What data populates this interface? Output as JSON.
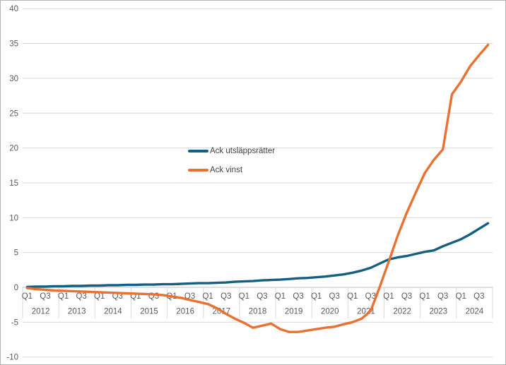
{
  "style": {
    "background": "#FFFFFF",
    "frame_border_color": "#B3B3B3",
    "gridline_color": "#D9D9D9",
    "axis_line_color": "#BFBFBF",
    "tick_label_color": "#595959",
    "legend_text_color": "#404040"
  },
  "chart_data": {
    "type": "line",
    "title": "",
    "xlabel": "",
    "ylabel": "",
    "ylim": [
      -10,
      40
    ],
    "ytick_step": 5,
    "yticks": [
      40,
      35,
      30,
      25,
      20,
      15,
      10,
      5,
      0,
      -5,
      -10
    ],
    "grid": true,
    "legend": {
      "position": "inside-center-left",
      "items": [
        "Ack utsläppsrätter",
        "Ack vinst"
      ]
    },
    "x_axis": {
      "years": [
        "2012",
        "2013",
        "2014",
        "2015",
        "2016",
        "2017",
        "2018",
        "2019",
        "2020",
        "2021",
        "2022",
        "2023",
        "2024"
      ],
      "quarters_per_year": 4,
      "quarter_tick_labels": [
        "Q1",
        "Q3"
      ],
      "quarter_tick_offsets": [
        0,
        2
      ]
    },
    "series": [
      {
        "name": "Ack utsläppsrätter",
        "color": "#156082",
        "values": [
          0.05,
          0.1,
          0.1,
          0.15,
          0.15,
          0.2,
          0.2,
          0.25,
          0.25,
          0.3,
          0.3,
          0.35,
          0.35,
          0.4,
          0.4,
          0.45,
          0.45,
          0.5,
          0.55,
          0.6,
          0.6,
          0.65,
          0.7,
          0.8,
          0.85,
          0.9,
          1.0,
          1.05,
          1.1,
          1.2,
          1.3,
          1.35,
          1.45,
          1.55,
          1.7,
          1.85,
          2.1,
          2.4,
          2.8,
          3.4,
          4.0,
          4.3,
          4.5,
          4.8,
          5.1,
          5.3,
          5.9,
          6.4,
          6.9,
          7.6,
          8.4,
          9.2
        ]
      },
      {
        "name": "Ack vinst",
        "color": "#E97132",
        "values": [
          -0.1,
          -0.25,
          -0.35,
          -0.45,
          -0.5,
          -0.55,
          -0.6,
          -0.65,
          -0.7,
          -0.75,
          -0.8,
          -0.85,
          -0.9,
          -0.95,
          -1.0,
          -1.1,
          -1.3,
          -1.5,
          -1.8,
          -2.1,
          -2.4,
          -3.0,
          -3.8,
          -4.5,
          -5.1,
          -5.8,
          -5.5,
          -5.2,
          -6.0,
          -6.4,
          -6.4,
          -6.2,
          -6.0,
          -5.8,
          -5.65,
          -5.3,
          -5.0,
          -4.5,
          -3.4,
          0.0,
          3.65,
          7.4,
          10.7,
          13.6,
          16.4,
          18.3,
          19.8,
          27.7,
          29.5,
          31.7,
          33.3,
          34.8
        ]
      }
    ]
  }
}
